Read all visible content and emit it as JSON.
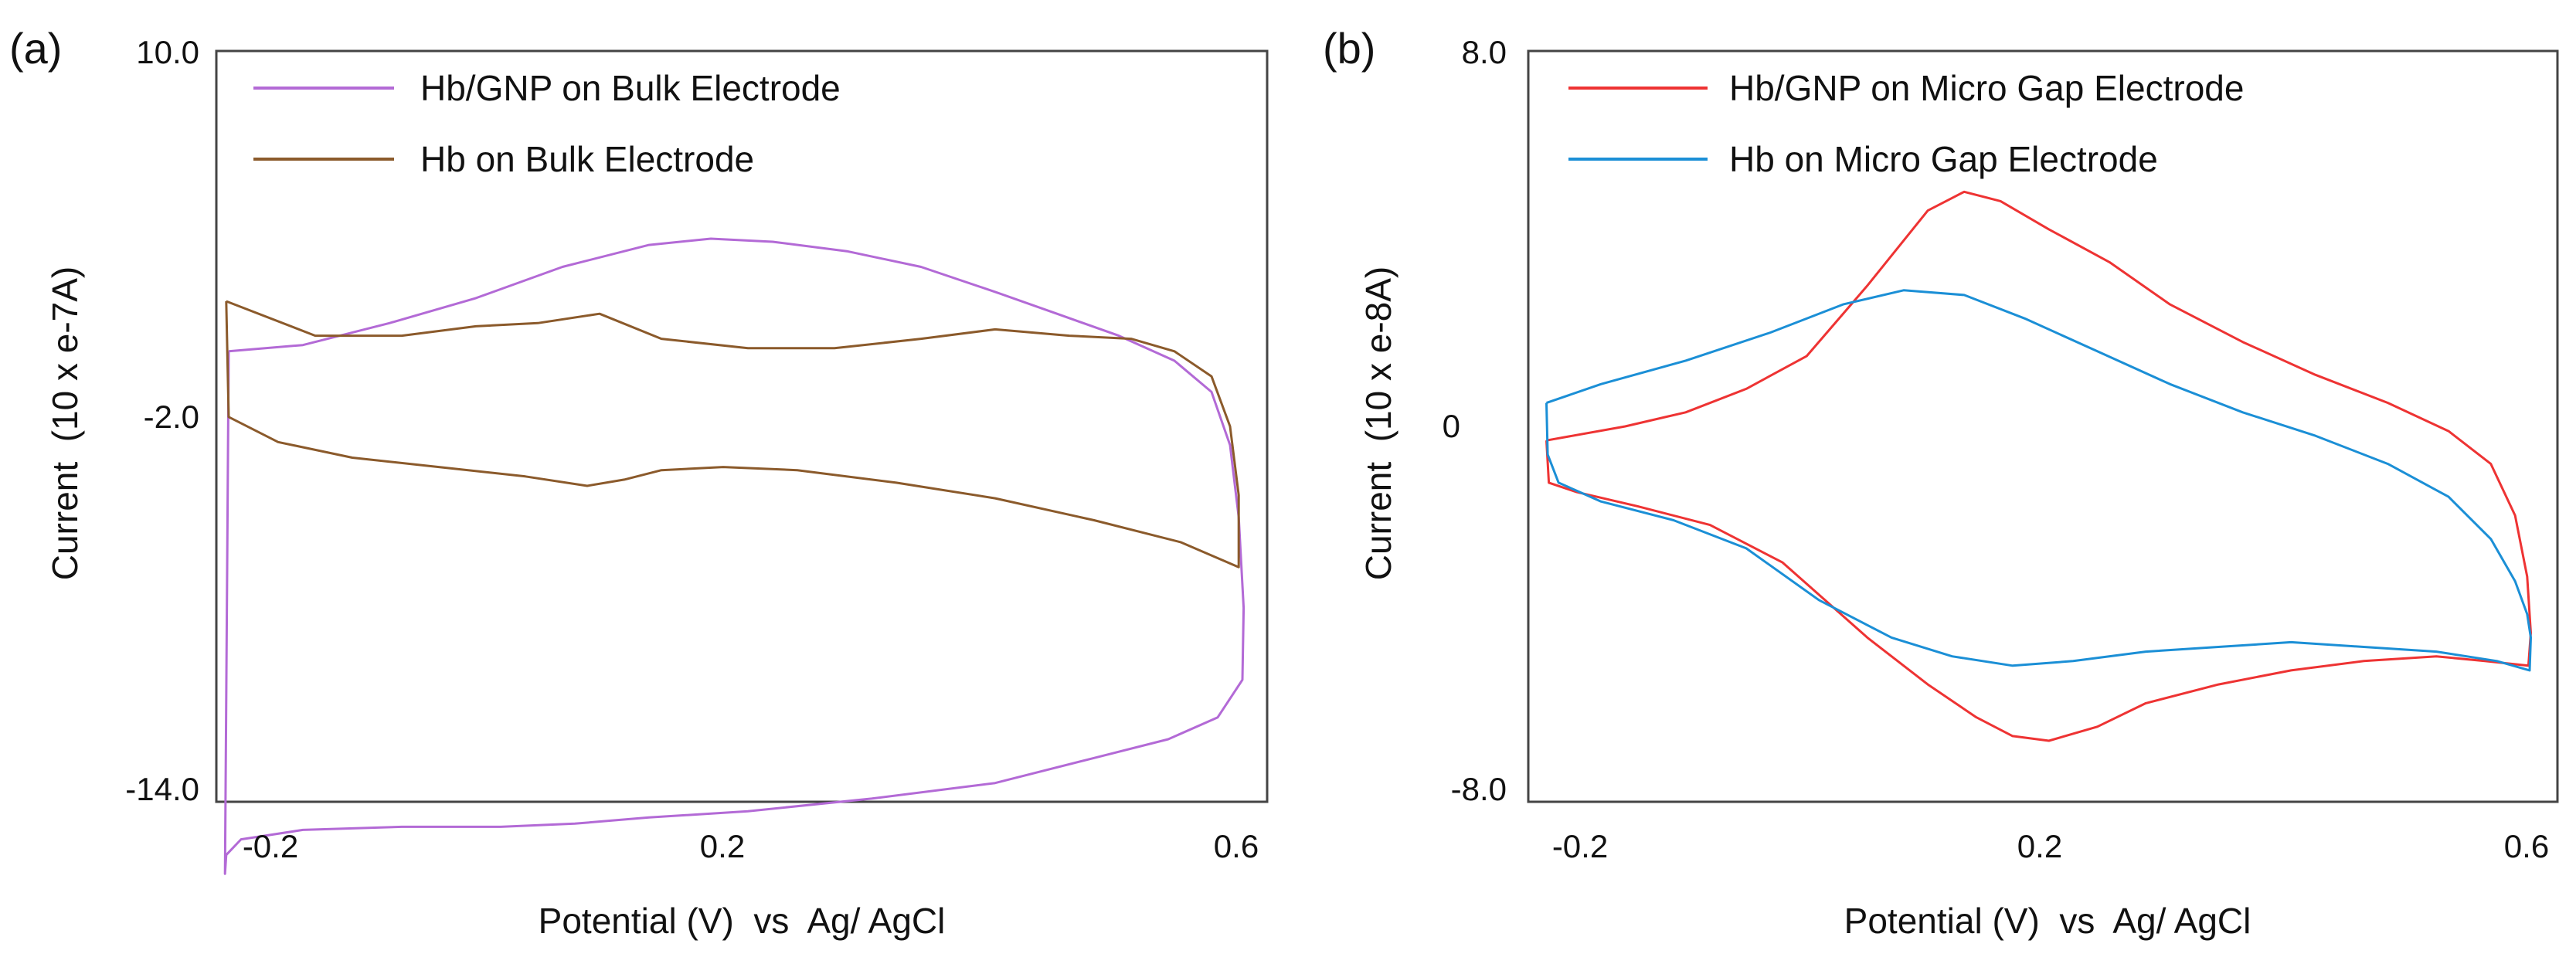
{
  "chart_data": [
    {
      "type": "line",
      "panel_label": "(a)",
      "xlabel": "Potential (V)  vs  Ag/ AgCl",
      "ylabel": "Current  (10 x e-7A)",
      "xlim": [
        -0.23,
        0.62
      ],
      "ylim": [
        -14.0,
        10.0
      ],
      "xtick_labels": [
        "-0.2",
        "0.2",
        "0.6"
      ],
      "xtick_values": [
        -0.2,
        0.2,
        0.6
      ],
      "ytick_labels": [
        "10.0",
        "-2.0",
        "-14.0"
      ],
      "ytick_values": [
        10.0,
        -2.0,
        -14.0
      ],
      "legend_position": "top-left",
      "series": [
        {
          "name": "Hb/GNP on Bulk Electrode",
          "color": "#b36ad6",
          "x": [
            -0.22,
            -0.16,
            -0.09,
            -0.02,
            0.05,
            0.12,
            0.17,
            0.22,
            0.28,
            0.34,
            0.4,
            0.45,
            0.5,
            0.545,
            0.575,
            0.59,
            0.597,
            0.601,
            0.6,
            0.58,
            0.54,
            0.48,
            0.4,
            0.3,
            0.2,
            0.12,
            0.06,
            0.0,
            -0.08,
            -0.16,
            -0.21,
            -0.222,
            -0.223,
            -0.22
          ],
          "y": [
            0.4,
            0.6,
            1.3,
            2.1,
            3.1,
            3.8,
            4.0,
            3.9,
            3.6,
            3.1,
            2.3,
            1.6,
            0.9,
            0.1,
            -0.9,
            -2.6,
            -4.9,
            -7.8,
            -10.1,
            -11.3,
            -12.0,
            -12.6,
            -13.4,
            -13.9,
            -14.3,
            -14.5,
            -14.7,
            -14.8,
            -14.8,
            -14.9,
            -15.2,
            -15.7,
            -16.3,
            0.4
          ]
        },
        {
          "name": "Hb on Bulk Electrode",
          "color": "#8b5a2b",
          "x": [
            -0.222,
            -0.15,
            -0.08,
            -0.02,
            0.03,
            0.08,
            0.13,
            0.2,
            0.27,
            0.34,
            0.4,
            0.46,
            0.51,
            0.545,
            0.575,
            0.59,
            0.597,
            0.597,
            0.55,
            0.48,
            0.4,
            0.32,
            0.24,
            0.18,
            0.13,
            0.1,
            0.07,
            0.02,
            -0.05,
            -0.12,
            -0.18,
            -0.22,
            -0.222
          ],
          "y": [
            2.0,
            0.9,
            0.9,
            1.2,
            1.3,
            1.6,
            0.8,
            0.5,
            0.5,
            0.8,
            1.1,
            0.9,
            0.8,
            0.4,
            -0.4,
            -2.0,
            -4.2,
            -6.5,
            -5.7,
            -5.0,
            -4.3,
            -3.8,
            -3.4,
            -3.3,
            -3.4,
            -3.7,
            -3.9,
            -3.6,
            -3.3,
            -3.0,
            -2.5,
            -1.7,
            2.0
          ]
        }
      ]
    },
    {
      "type": "line",
      "panel_label": "(b)",
      "xlabel": "Potential (V)  vs  Ag/ AgCl",
      "ylabel": "Current  (10 x e-8A)",
      "xlim": [
        -0.23,
        0.62
      ],
      "ylim": [
        -8.0,
        8.0
      ],
      "xtick_labels": [
        "-0.2",
        "0.2",
        "0.6"
      ],
      "xtick_values": [
        -0.2,
        0.2,
        0.6
      ],
      "ytick_labels": [
        "8.0",
        "0",
        "-8.0"
      ],
      "ytick_values": [
        8.0,
        0.0,
        -8.0
      ],
      "legend_position": "top-left",
      "series": [
        {
          "name": "Hb/GNP on Micro Gap Electrode",
          "color": "#ee3333",
          "x": [
            -0.215,
            -0.15,
            -0.1,
            -0.05,
            0.0,
            0.05,
            0.1,
            0.13,
            0.16,
            0.2,
            0.25,
            0.3,
            0.36,
            0.42,
            0.48,
            0.53,
            0.565,
            0.585,
            0.595,
            0.598,
            0.596,
            0.56,
            0.52,
            0.46,
            0.4,
            0.34,
            0.28,
            0.24,
            0.2,
            0.17,
            0.14,
            0.1,
            0.05,
            -0.02,
            -0.08,
            -0.14,
            -0.19,
            -0.213,
            -0.215
          ],
          "y": [
            -0.3,
            0.0,
            0.3,
            0.8,
            1.5,
            3.0,
            4.6,
            5.0,
            4.8,
            4.2,
            3.5,
            2.6,
            1.8,
            1.1,
            0.5,
            -0.1,
            -0.8,
            -1.9,
            -3.2,
            -4.4,
            -5.1,
            -5.0,
            -4.9,
            -5.0,
            -5.2,
            -5.5,
            -5.9,
            -6.4,
            -6.7,
            -6.6,
            -6.2,
            -5.5,
            -4.5,
            -2.9,
            -2.1,
            -1.7,
            -1.4,
            -1.2,
            -0.3
          ]
        },
        {
          "name": "Hb on Micro Gap Electrode",
          "color": "#1b8fd6",
          "x": [
            -0.215,
            -0.17,
            -0.1,
            -0.03,
            0.03,
            0.08,
            0.13,
            0.18,
            0.24,
            0.3,
            0.36,
            0.42,
            0.48,
            0.53,
            0.565,
            0.585,
            0.595,
            0.598,
            0.597,
            0.57,
            0.52,
            0.46,
            0.4,
            0.34,
            0.28,
            0.22,
            0.17,
            0.12,
            0.07,
            0.01,
            -0.05,
            -0.11,
            -0.17,
            -0.205,
            -0.214,
            -0.215
          ],
          "y": [
            0.5,
            0.9,
            1.4,
            2.0,
            2.6,
            2.9,
            2.8,
            2.3,
            1.6,
            0.9,
            0.3,
            -0.2,
            -0.8,
            -1.5,
            -2.4,
            -3.3,
            -4.0,
            -4.5,
            -5.2,
            -5.0,
            -4.8,
            -4.7,
            -4.6,
            -4.7,
            -4.8,
            -5.0,
            -5.1,
            -4.9,
            -4.5,
            -3.7,
            -2.6,
            -2.0,
            -1.6,
            -1.2,
            -0.6,
            0.5
          ]
        }
      ]
    }
  ]
}
